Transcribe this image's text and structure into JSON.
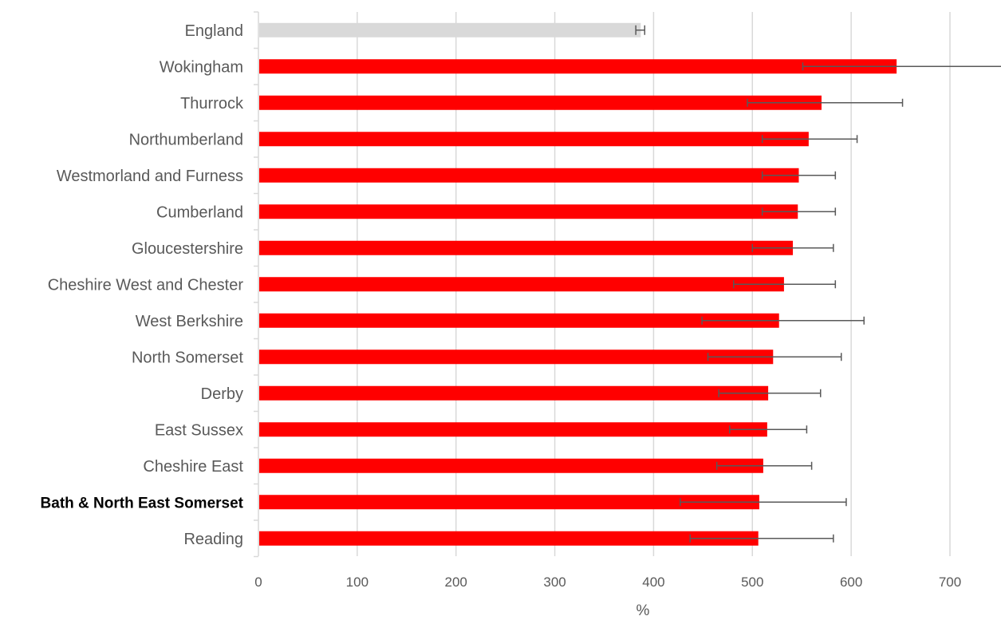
{
  "chart_data": {
    "type": "bar",
    "orientation": "horizontal",
    "title": "",
    "xlabel": "%",
    "ylabel": "",
    "xlim": [
      0,
      700
    ],
    "x_ticks": [
      0,
      100,
      200,
      300,
      400,
      500,
      600,
      700
    ],
    "grid": "vertical gridlines",
    "legend": "none",
    "highlight_category": "Bath & North East Somerset",
    "colors": {
      "bar": "#ff0000",
      "reference_bar": "#d9d9d9",
      "error_bar": "#595959",
      "grid": "#d9d9d9"
    },
    "categories": [
      "England",
      "Wokingham",
      "Thurrock",
      "Northumberland",
      "Westmorland and Furness",
      "Cumberland",
      "Gloucestershire",
      "Cheshire West and Chester",
      "West Berkshire",
      "North Somerset",
      "Derby",
      "East Sussex",
      "Cheshire East",
      "Bath & North East Somerset",
      "Reading"
    ],
    "values": [
      387,
      646,
      570,
      557,
      547,
      546,
      541,
      532,
      527,
      521,
      516,
      515,
      511,
      507,
      506
    ],
    "ci_lower": [
      382,
      551,
      495,
      510,
      510,
      510,
      500,
      481,
      449,
      455,
      466,
      477,
      464,
      427,
      437
    ],
    "ci_upper": [
      391,
      755,
      652,
      606,
      584,
      584,
      582,
      584,
      613,
      590,
      569,
      555,
      560,
      595,
      582
    ]
  }
}
